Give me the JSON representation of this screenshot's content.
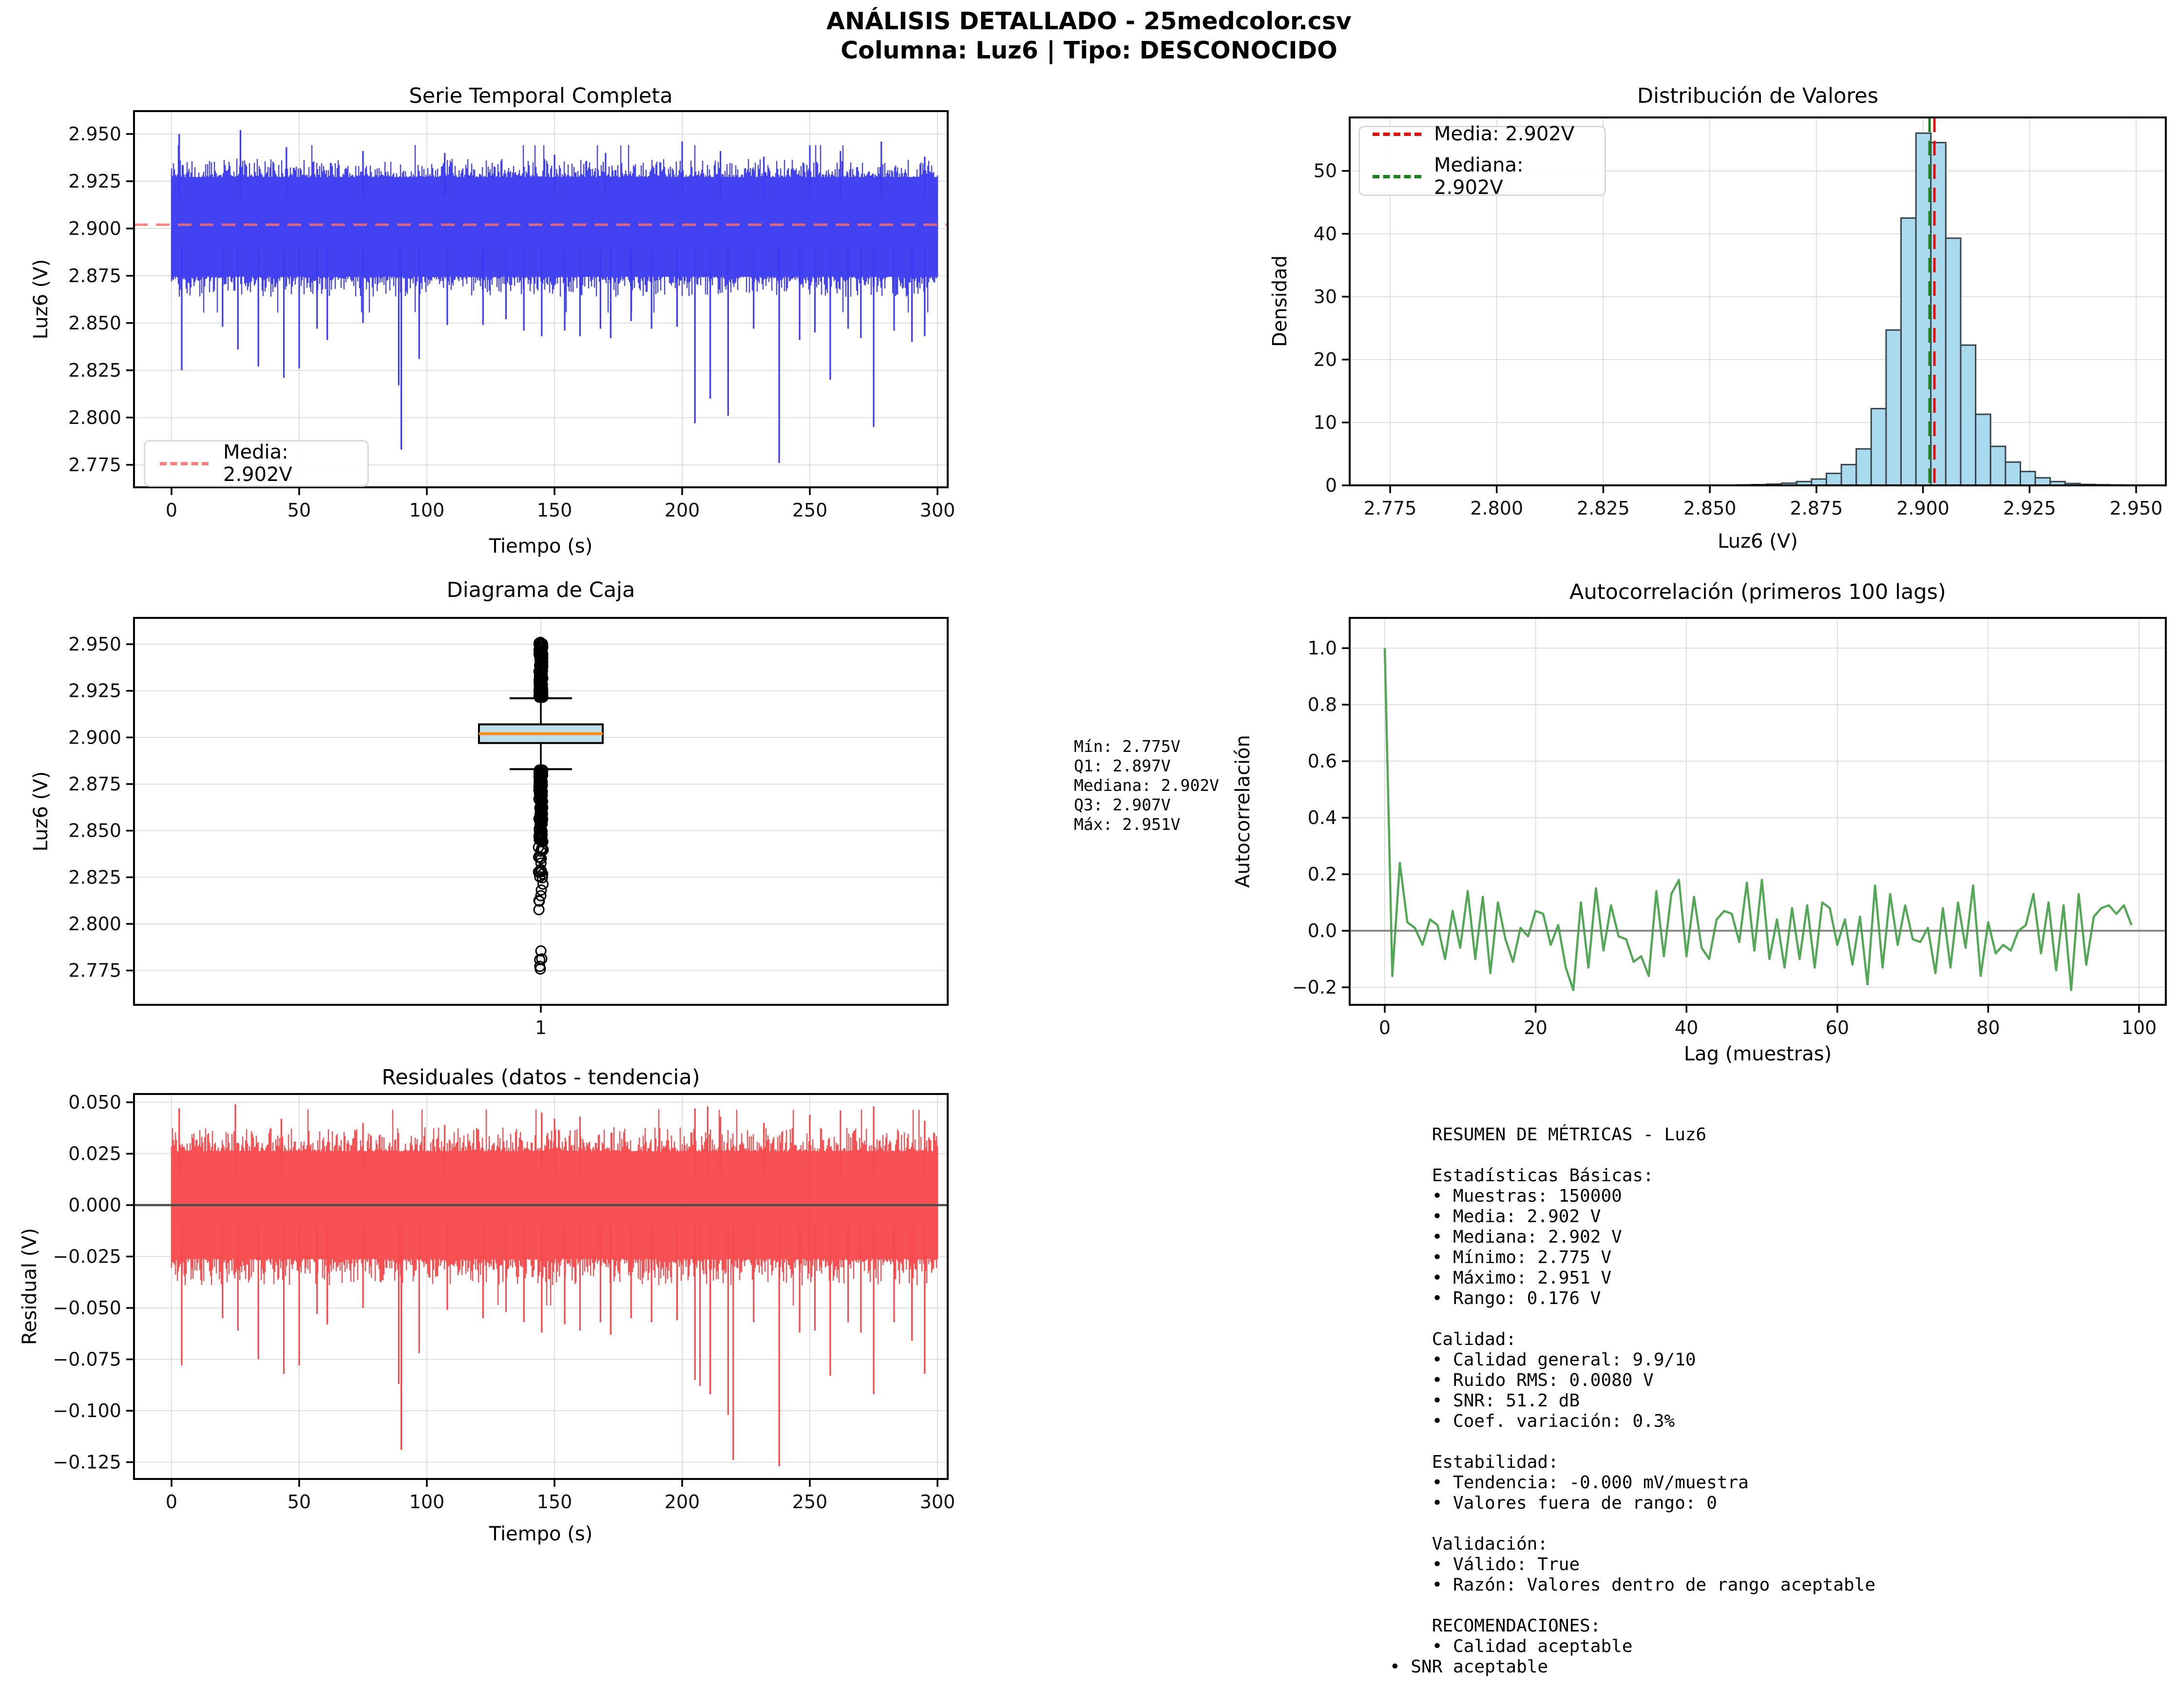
{
  "header": {
    "line1": "ANÁLISIS DETALLADO - 25medcolor.csv",
    "line2": "Columna: Luz6 | Tipo: DESCONOCIDO"
  },
  "stats_box": {
    "lines": [
      "Mín: 2.775V",
      "Q1: 2.897V",
      "Mediana: 2.902V",
      "Q3: 2.907V",
      "Máx: 2.951V"
    ]
  },
  "metrics": {
    "lines": [
      "    RESUMEN DE MÉTRICAS - Luz6",
      "",
      "    Estadísticas Básicas:",
      "    • Muestras: 150000",
      "    • Media: 2.902 V",
      "    • Mediana: 2.902 V",
      "    • Mínimo: 2.775 V",
      "    • Máximo: 2.951 V",
      "    • Rango: 0.176 V",
      "",
      "    Calidad:",
      "    • Calidad general: 9.9/10",
      "    • Ruido RMS: 0.0080 V",
      "    • SNR: 51.2 dB",
      "    • Coef. variación: 0.3%",
      "",
      "    Estabilidad:",
      "    • Tendencia: -0.000 mV/muestra",
      "    • Valores fuera de rango: 0",
      "",
      "    Validación:",
      "    • Válido: True",
      "    • Razón: Valores dentro de rango aceptable",
      "",
      "    RECOMENDACIONES:",
      "    • Calidad aceptable",
      "• SNR aceptable"
    ]
  },
  "chart_data": [
    {
      "id": "serie",
      "type": "line",
      "title": "Serie Temporal Completa",
      "xlabel": "Tiempo (s)",
      "ylabel": "Luz6 (V)",
      "xticks": [
        0,
        50,
        100,
        150,
        200,
        250,
        300
      ],
      "yticks": [
        2.775,
        2.8,
        2.825,
        2.85,
        2.875,
        2.9,
        2.925,
        2.95
      ],
      "xlim": [
        -14.7,
        304.0
      ],
      "ylim": [
        2.7631,
        2.9621
      ],
      "grid": true,
      "color": "#3a3af0",
      "mean_line": {
        "value": 2.902,
        "color": "#f4716f",
        "label": "Media: 2.902V"
      },
      "band": {
        "top": 2.9272,
        "bottom": 2.8745,
        "hair": 0.01
      },
      "spikes_down": [
        [
          4,
          2.825
        ],
        [
          20,
          2.848
        ],
        [
          26,
          2.836
        ],
        [
          34,
          2.827
        ],
        [
          44,
          2.821
        ],
        [
          50,
          2.826
        ],
        [
          57,
          2.847
        ],
        [
          61,
          2.841
        ],
        [
          75,
          2.85
        ],
        [
          89,
          2.817
        ],
        [
          90,
          2.783
        ],
        [
          97,
          2.831
        ],
        [
          108,
          2.849
        ],
        [
          122,
          2.849
        ],
        [
          131,
          2.852
        ],
        [
          138,
          2.846
        ],
        [
          145,
          2.843
        ],
        [
          154,
          2.846
        ],
        [
          160,
          2.843
        ],
        [
          168,
          2.847
        ],
        [
          172,
          2.842
        ],
        [
          180,
          2.851
        ],
        [
          188,
          2.847
        ],
        [
          198,
          2.848
        ],
        [
          205,
          2.797
        ],
        [
          211,
          2.81
        ],
        [
          218,
          2.801
        ],
        [
          228,
          2.847
        ],
        [
          238,
          2.776
        ],
        [
          246,
          2.841
        ],
        [
          252,
          2.845
        ],
        [
          258,
          2.82
        ],
        [
          265,
          2.847
        ],
        [
          270,
          2.842
        ],
        [
          275,
          2.795
        ],
        [
          283,
          2.846
        ],
        [
          290,
          2.84
        ],
        [
          295,
          2.843
        ]
      ],
      "spikes_up": [
        [
          3,
          2.95
        ],
        [
          27,
          2.952
        ],
        [
          45,
          2.943
        ],
        [
          75,
          2.941
        ],
        [
          107,
          2.94
        ],
        [
          150,
          2.939
        ],
        [
          170,
          2.94
        ],
        [
          200,
          2.946
        ],
        [
          215,
          2.941
        ],
        [
          232,
          2.938
        ],
        [
          250,
          2.944
        ],
        [
          262,
          2.941
        ],
        [
          278,
          2.946
        ],
        [
          295,
          2.938
        ]
      ]
    },
    {
      "id": "hist",
      "type": "bar",
      "title": "Distribución de Valores",
      "xlabel": "Luz6 (V)",
      "ylabel": "Densidad",
      "xticks": [
        2.775,
        2.8,
        2.825,
        2.85,
        2.875,
        2.9,
        2.925,
        2.95
      ],
      "yticks": [
        0,
        10,
        20,
        30,
        40,
        50
      ],
      "xlim": [
        2.76551,
        2.95697
      ],
      "ylim": [
        0,
        58.5
      ],
      "grid": true,
      "bar_fill": "#a9d9ec",
      "bar_edge": "#3a454d",
      "bin_width": 0.0035,
      "bins": [
        [
          2.8581,
          0.08
        ],
        [
          2.8616,
          0.12
        ],
        [
          2.8651,
          0.2
        ],
        [
          2.8686,
          0.35
        ],
        [
          2.8721,
          0.6
        ],
        [
          2.8756,
          1.0
        ],
        [
          2.8791,
          1.9
        ],
        [
          2.8826,
          3.3
        ],
        [
          2.8861,
          5.8
        ],
        [
          2.8896,
          12.2
        ],
        [
          2.8931,
          24.7
        ],
        [
          2.8966,
          42.5
        ],
        [
          2.9001,
          56.0
        ],
        [
          2.9036,
          54.5
        ],
        [
          2.9071,
          39.3
        ],
        [
          2.9106,
          22.3
        ],
        [
          2.9141,
          11.3
        ],
        [
          2.9176,
          6.2
        ],
        [
          2.9211,
          3.7
        ],
        [
          2.9246,
          2.2
        ],
        [
          2.9281,
          1.2
        ],
        [
          2.9316,
          0.6
        ],
        [
          2.9351,
          0.3
        ],
        [
          2.9386,
          0.15
        ],
        [
          2.9421,
          0.1
        ],
        [
          2.9456,
          0.06
        ],
        [
          2.9491,
          0.03
        ]
      ],
      "legend": [
        {
          "label": "Media: 2.902V",
          "color": "#e01010",
          "value": 2.902
        },
        {
          "label": "Mediana: 2.902V",
          "color": "#1d7f1d",
          "value": 2.902
        }
      ]
    },
    {
      "id": "caja",
      "type": "box",
      "title": "Diagrama de Caja",
      "xlabel": "",
      "ylabel": "Luz6 (V)",
      "xticks_labels": [
        "1"
      ],
      "yticks": [
        2.775,
        2.8,
        2.825,
        2.85,
        2.875,
        2.9,
        2.925,
        2.95
      ],
      "xlim": [
        0.5,
        1.5
      ],
      "ylim": [
        2.7566,
        2.9641
      ],
      "grid": true,
      "box": {
        "q1": 2.897,
        "median": 2.902,
        "q3": 2.907,
        "whisker_low": 2.883,
        "whisker_high": 2.921,
        "min": 2.775,
        "max": 2.951
      },
      "box_fill": "#bfdeeb",
      "median_color": "#ff8c1a",
      "outliers": {
        "upper_range": [
          2.9215,
          2.951
        ],
        "upper_count": 150,
        "lower_dense_range": [
          2.8825,
          2.845
        ],
        "lower_dense_count": 180,
        "lower_sparse_range": [
          2.845,
          2.807
        ],
        "lower_sparse_count": 28,
        "isolated": [
          2.7855,
          2.7812,
          2.7808,
          2.7772,
          2.7758
        ]
      }
    },
    {
      "id": "acorr",
      "type": "line",
      "title": "Autocorrelación (primeros 100 lags)",
      "xlabel": "Lag (muestras)",
      "ylabel": "Autocorrelación",
      "xticks": [
        0,
        20,
        40,
        60,
        80,
        100
      ],
      "yticks": [
        -0.2,
        0.0,
        0.2,
        0.4,
        0.6,
        0.8,
        1.0
      ],
      "xlim": [
        -4.65,
        103.55
      ],
      "ylim": [
        -0.262,
        1.107
      ],
      "grid": true,
      "color": "#45a049",
      "zero_line": true,
      "values": [
        1.0,
        -0.16,
        0.24,
        0.03,
        0.01,
        -0.05,
        0.04,
        0.02,
        -0.1,
        0.07,
        -0.06,
        0.14,
        -0.1,
        0.12,
        -0.15,
        0.1,
        -0.03,
        -0.11,
        0.01,
        -0.02,
        0.07,
        0.06,
        -0.05,
        0.02,
        -0.13,
        -0.21,
        0.1,
        -0.13,
        0.15,
        -0.07,
        0.09,
        -0.02,
        -0.03,
        -0.11,
        -0.09,
        -0.16,
        0.14,
        -0.09,
        0.13,
        0.18,
        -0.09,
        0.12,
        -0.06,
        -0.1,
        0.04,
        0.07,
        0.06,
        -0.04,
        0.17,
        -0.07,
        0.18,
        -0.1,
        0.04,
        -0.13,
        0.08,
        -0.1,
        0.09,
        -0.13,
        0.1,
        0.08,
        -0.05,
        0.04,
        -0.12,
        0.05,
        -0.19,
        0.16,
        -0.13,
        0.13,
        -0.05,
        0.09,
        -0.03,
        -0.04,
        0.01,
        -0.15,
        0.08,
        -0.13,
        0.1,
        -0.06,
        0.16,
        -0.16,
        0.03,
        -0.08,
        -0.05,
        -0.07,
        0.0,
        0.02,
        0.13,
        -0.08,
        0.1,
        -0.14,
        0.09,
        -0.21,
        0.13,
        -0.12,
        0.05,
        0.08,
        0.09,
        0.06,
        0.09,
        0.02
      ]
    },
    {
      "id": "resid",
      "type": "line",
      "title": "Residuales (datos - tendencia)",
      "xlabel": "Tiempo (s)",
      "ylabel": "Residual (V)",
      "xticks": [
        0,
        50,
        100,
        150,
        200,
        250,
        300
      ],
      "yticks": [
        -0.125,
        -0.1,
        -0.075,
        -0.05,
        -0.025,
        0.0,
        0.025,
        0.05
      ],
      "xlim": [
        -14.7,
        304.0
      ],
      "ylim": [
        -0.13317,
        0.05403
      ],
      "grid": true,
      "color": "#f5494b",
      "zero_line": true,
      "band": {
        "top": 0.0262,
        "bottom": -0.0262,
        "hair": 0.012
      },
      "spikes_down": [
        [
          4,
          -0.078
        ],
        [
          20,
          -0.055
        ],
        [
          26,
          -0.061
        ],
        [
          34,
          -0.075
        ],
        [
          44,
          -0.082
        ],
        [
          50,
          -0.078
        ],
        [
          57,
          -0.053
        ],
        [
          61,
          -0.058
        ],
        [
          75,
          -0.05
        ],
        [
          89,
          -0.087
        ],
        [
          90,
          -0.119
        ],
        [
          97,
          -0.072
        ],
        [
          108,
          -0.051
        ],
        [
          122,
          -0.055
        ],
        [
          131,
          -0.052
        ],
        [
          138,
          -0.057
        ],
        [
          145,
          -0.062
        ],
        [
          154,
          -0.058
        ],
        [
          160,
          -0.061
        ],
        [
          168,
          -0.057
        ],
        [
          172,
          -0.063
        ],
        [
          180,
          -0.055
        ],
        [
          188,
          -0.057
        ],
        [
          198,
          -0.056
        ],
        [
          205,
          -0.085
        ],
        [
          207,
          -0.088
        ],
        [
          211,
          -0.092
        ],
        [
          218,
          -0.102
        ],
        [
          220,
          -0.124
        ],
        [
          228,
          -0.057
        ],
        [
          238,
          -0.127
        ],
        [
          246,
          -0.062
        ],
        [
          252,
          -0.061
        ],
        [
          258,
          -0.083
        ],
        [
          265,
          -0.057
        ],
        [
          270,
          -0.062
        ],
        [
          275,
          -0.092
        ],
        [
          283,
          -0.057
        ],
        [
          290,
          -0.066
        ],
        [
          295,
          -0.082
        ]
      ],
      "spikes_up": [
        [
          3,
          0.047
        ],
        [
          25,
          0.049
        ],
        [
          43,
          0.042
        ],
        [
          75,
          0.04
        ],
        [
          107,
          0.039
        ],
        [
          145,
          0.045
        ],
        [
          150,
          0.042
        ],
        [
          160,
          0.043
        ],
        [
          205,
          0.047
        ],
        [
          210,
          0.048
        ],
        [
          215,
          0.043
        ],
        [
          232,
          0.04
        ],
        [
          250,
          0.044
        ],
        [
          262,
          0.046
        ],
        [
          275,
          0.048
        ],
        [
          295,
          0.041
        ]
      ]
    }
  ]
}
